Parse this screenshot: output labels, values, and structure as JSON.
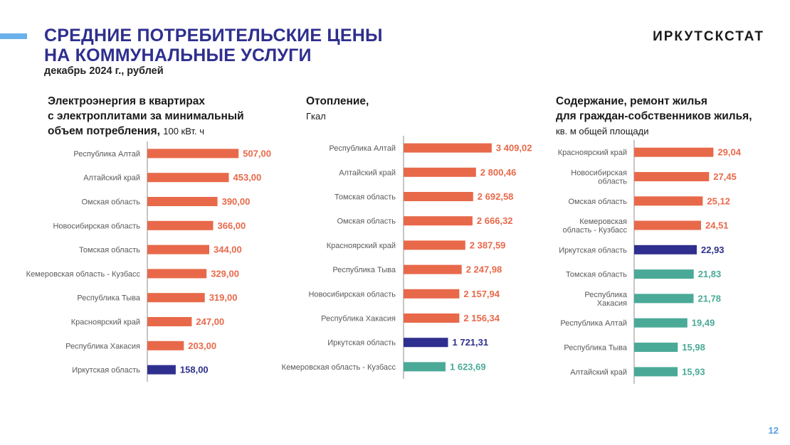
{
  "header": {
    "title_line1": "СРЕДНИЕ ПОТРЕБИТЕЛЬСКИЕ ЦЕНЫ",
    "title_line2": "НА КОММУНАЛЬНЫЕ УСЛУГИ",
    "subtitle": "декабрь 2024 г., рублей",
    "brand": "ИРКУТСКСТАТ"
  },
  "page_number": "12",
  "colors": {
    "title": "#2e2f8e",
    "accent_bar": "#6ab0ea",
    "bar_default": "#e8694a",
    "bar_highlight": "#2e2f8e",
    "bar_below": "#4aaa97",
    "page_number": "#5aa0e0",
    "axis": "#8c8c8c"
  },
  "panels": [
    {
      "title_lines": [
        "Электроэнергия в квартирах",
        "с электроплитами за минимальный",
        "объем потребления,"
      ],
      "unit": "100 кВт. ч",
      "unit_placement": "inline"
    },
    {
      "title_lines": [
        "Отопление,"
      ],
      "unit": "Гкал",
      "unit_placement": "newline"
    },
    {
      "title_lines": [
        "Содержание, ремонт жилья",
        "для граждан-собственников жилья,"
      ],
      "unit": "кв. м общей площади",
      "unit_placement": "newline"
    }
  ],
  "chart_data": [
    {
      "type": "bar",
      "orientation": "horizontal",
      "title": "Электроэнергия в квартирах с электроплитами за минимальный объем потребления, 100 кВт. ч",
      "categories": [
        "Республика Алтай",
        "Алтайский край",
        "Омская область",
        "Новосибирская область",
        "Томская область",
        "Кемеровская область - Кузбасс",
        "Республика Тыва",
        "Красноярский край",
        "Республика Хакасия",
        "Иркутская область"
      ],
      "values": [
        507.0,
        453.0,
        390.0,
        366.0,
        344.0,
        329.0,
        319.0,
        247.0,
        203.0,
        158.0
      ],
      "value_labels": [
        "507,00",
        "453,00",
        "390,00",
        "366,00",
        "344,00",
        "329,00",
        "319,00",
        "247,00",
        "203,00",
        "158,00"
      ],
      "bar_colors": [
        "default",
        "default",
        "default",
        "default",
        "default",
        "default",
        "default",
        "default",
        "default",
        "highlight"
      ],
      "xlim": [
        0,
        530
      ],
      "grid": false,
      "legend": "none"
    },
    {
      "type": "bar",
      "orientation": "horizontal",
      "title": "Отопление, Гкал",
      "categories": [
        "Республика Алтай",
        "Алтайский край",
        "Томская область",
        "Омская область",
        "Красноярский край",
        "Республика Тыва",
        "Новосибирская область",
        "Республика Хакасия",
        "Иркутская область",
        "Кемеровская область - Кузбасс"
      ],
      "values": [
        3409.02,
        2800.46,
        2692.58,
        2666.32,
        2387.59,
        2247.98,
        2157.94,
        2156.34,
        1721.31,
        1623.69
      ],
      "value_labels": [
        "3 409,02",
        "2 800,46",
        "2 692,58",
        "2 666,32",
        "2 387,59",
        "2 247,98",
        "2 157,94",
        "2 156,34",
        "1 721,31",
        "1 623,69"
      ],
      "bar_colors": [
        "default",
        "default",
        "default",
        "default",
        "default",
        "default",
        "default",
        "default",
        "highlight",
        "below"
      ],
      "xlim": [
        0,
        3550
      ],
      "grid": false,
      "legend": "none"
    },
    {
      "type": "bar",
      "orientation": "horizontal",
      "title": "Содержание, ремонт жилья для граждан-собственников жилья, кв. м общей площади",
      "categories": [
        "Красноярский край",
        "Новосибирская область",
        "Омская область",
        "Кемеровская область - Кузбасс",
        "Иркутская область",
        "Томская область",
        "Республика Хакасия",
        "Республика Алтай",
        "Республика Тыва",
        "Алтайский край"
      ],
      "values": [
        29.04,
        27.45,
        25.12,
        24.51,
        22.93,
        21.83,
        21.78,
        19.49,
        15.98,
        15.93
      ],
      "value_labels": [
        "29,04",
        "27,45",
        "25,12",
        "24,51",
        "22,93",
        "21,83",
        "21,78",
        "19,49",
        "15,98",
        "15,93"
      ],
      "bar_colors": [
        "default",
        "default",
        "default",
        "default",
        "highlight",
        "below",
        "below",
        "below",
        "below",
        "below"
      ],
      "xlim": [
        0,
        30.5
      ],
      "grid": false,
      "legend": "none"
    }
  ]
}
